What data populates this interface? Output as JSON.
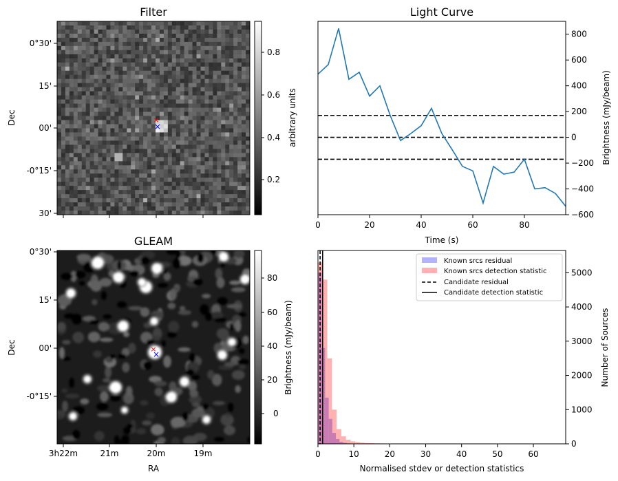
{
  "panels": {
    "filter": {
      "title": "Filter",
      "ylabel": "Dec",
      "yticks": [
        "0°30'",
        "15'",
        "00'",
        "-0°15'",
        "30'"
      ],
      "colorbar": {
        "label": "arbitrary units",
        "ticks": [
          "0.8",
          "0.6",
          "0.4",
          "0.2"
        ]
      },
      "markers": {
        "red": "×",
        "blue": "×"
      }
    },
    "gleam": {
      "title": "GLEAM",
      "ylabel": "Dec",
      "xlabel": "RA",
      "yticks": [
        "0°30'",
        "15'",
        "00'",
        "-0°15'"
      ],
      "xticks": [
        "3h22m",
        "21m",
        "20m",
        "19m"
      ],
      "colorbar": {
        "label": "Brightness (mJy/beam)",
        "ticks": [
          "80",
          "60",
          "40",
          "20",
          "0"
        ]
      }
    }
  },
  "chart_data": [
    {
      "type": "image",
      "title": "Filter",
      "ylabel": "Dec",
      "colorbar_label": "arbitrary units",
      "colorbar_range": [
        0.03,
        0.93
      ]
    },
    {
      "type": "line",
      "title": "Light Curve",
      "xlabel": "Time (s)",
      "ylabel": "Brightness (mJy/beam)",
      "xlim": [
        0,
        96
      ],
      "ylim": [
        -600,
        900
      ],
      "xticks": [
        "0",
        "20",
        "40",
        "60",
        "80"
      ],
      "yticks": [
        "800",
        "600",
        "400",
        "200",
        "0",
        "−200",
        "−400",
        "−600"
      ],
      "series": [
        {
          "color": "#1f77b4",
          "x": [
            0,
            4,
            8,
            12,
            16,
            20,
            24,
            28,
            32,
            36,
            40,
            44,
            48,
            52,
            56,
            60,
            64,
            68,
            72,
            76,
            80,
            84,
            88,
            92,
            96
          ],
          "y": [
            490,
            565,
            845,
            450,
            505,
            320,
            400,
            170,
            -25,
            30,
            90,
            225,
            30,
            -95,
            -225,
            -260,
            -510,
            -225,
            -285,
            -270,
            -170,
            -400,
            -390,
            -435,
            -535
          ]
        }
      ],
      "hlines": [
        170,
        0,
        -170
      ],
      "hline_style": "dashed"
    },
    {
      "type": "image",
      "title": "GLEAM",
      "xlabel": "RA",
      "ylabel": "Dec",
      "colorbar_label": "Brightness (mJy/beam)",
      "colorbar_range": [
        -18,
        95
      ]
    },
    {
      "type": "histogram",
      "xlabel": "Normalised stdev or detection statistics",
      "ylabel": "Number of Sources",
      "xlim": [
        0,
        69
      ],
      "ylim": [
        0,
        5650
      ],
      "xticks": [
        "0",
        "10",
        "20",
        "30",
        "40",
        "50",
        "60"
      ],
      "yticks": [
        "5000",
        "4000",
        "3000",
        "2000",
        "1000",
        "0"
      ],
      "series": [
        {
          "name": "Known srcs residual",
          "color": "#0000ff",
          "bin_edges": [
            0,
            1,
            2,
            3,
            4,
            5,
            6,
            7,
            8,
            9,
            10
          ],
          "counts": [
            5000,
            2800,
            1350,
            730,
            320,
            140,
            60,
            30,
            15,
            5
          ]
        },
        {
          "name": "Known srcs detection statistic",
          "color": "#ff0000",
          "bin_edges": [
            0,
            1.3,
            2.6,
            3.9,
            5.2,
            6.5,
            7.8,
            9.1,
            10.4,
            11.7,
            13,
            14.3,
            15.6,
            16.9,
            18.2,
            19.5,
            20.8,
            22.1,
            23.4,
            24.7,
            26
          ],
          "counts": [
            5300,
            4800,
            2500,
            1000,
            430,
            220,
            120,
            75,
            50,
            35,
            25,
            20,
            15,
            12,
            10,
            8,
            7,
            6,
            5,
            4
          ]
        }
      ],
      "vlines": [
        {
          "name": "Candidate residual",
          "x": 0.6,
          "style": "dashed"
        },
        {
          "name": "Candidate detection statistic",
          "x": 1.3,
          "style": "solid"
        }
      ],
      "legend_position": "top-right"
    }
  ]
}
